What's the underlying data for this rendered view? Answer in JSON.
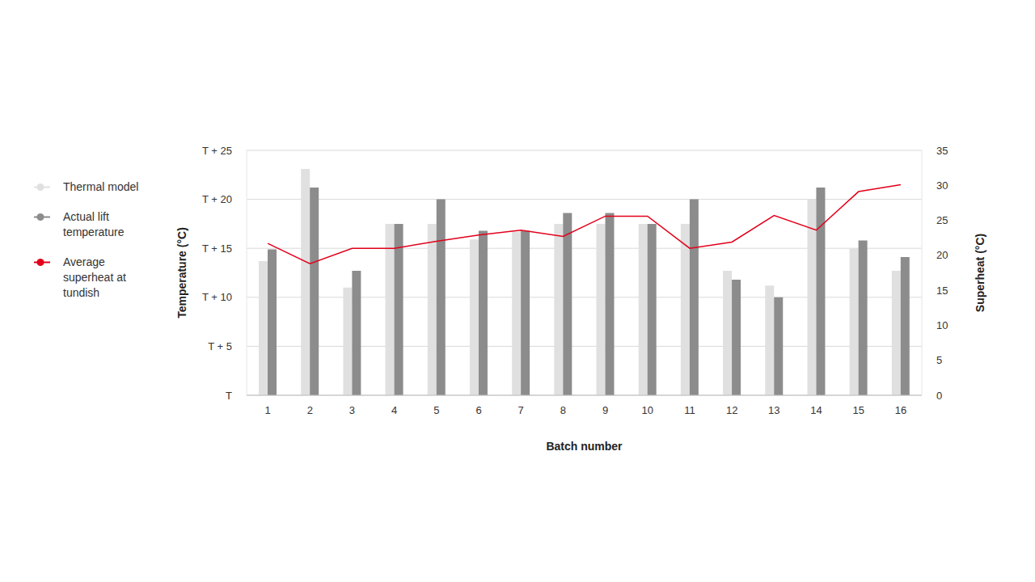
{
  "chart_data": {
    "type": "bar",
    "categories": [
      "1",
      "2",
      "3",
      "4",
      "5",
      "6",
      "7",
      "8",
      "9",
      "10",
      "11",
      "12",
      "13",
      "14",
      "15",
      "16"
    ],
    "series": [
      {
        "name": "Thermal model",
        "type": "bar",
        "color": "#e0e0e0",
        "values": [
          13.7,
          23.1,
          11.0,
          17.5,
          17.5,
          15.9,
          16.7,
          17.5,
          17.5,
          17.5,
          17.5,
          12.7,
          11.2,
          20.0,
          15.0,
          12.7
        ]
      },
      {
        "name": "Actual lift temperature",
        "type": "bar",
        "color": "#8c8c8c",
        "values": [
          14.9,
          21.2,
          12.7,
          17.5,
          20.0,
          16.8,
          16.8,
          18.6,
          18.6,
          17.5,
          20.0,
          11.8,
          10.0,
          21.2,
          15.8,
          14.1
        ]
      },
      {
        "name": "Average superheat at tundish",
        "type": "line",
        "axis": "y2",
        "color": "#e2001a",
        "values": [
          21.7,
          18.8,
          21.0,
          21.0,
          22.0,
          22.9,
          23.6,
          22.7,
          25.6,
          25.6,
          21.0,
          21.9,
          25.7,
          23.6,
          29.1,
          30.1
        ]
      }
    ],
    "x_label": "Batch number",
    "y_label": "Temperature (°C)",
    "y2_label": "Superheat (°C)",
    "ylim": [
      0,
      25
    ],
    "yticks": [
      {
        "value": 0,
        "label": "T"
      },
      {
        "value": 5,
        "label": "T + 5"
      },
      {
        "value": 10,
        "label": "T + 10"
      },
      {
        "value": 15,
        "label": "T + 15"
      },
      {
        "value": 20,
        "label": "T + 20"
      },
      {
        "value": 25,
        "label": "T + 25"
      }
    ],
    "y2lim": [
      0,
      35
    ],
    "y2ticks": [
      0,
      5,
      10,
      15,
      20,
      25,
      30,
      35
    ],
    "grid": true,
    "legend": "left"
  }
}
